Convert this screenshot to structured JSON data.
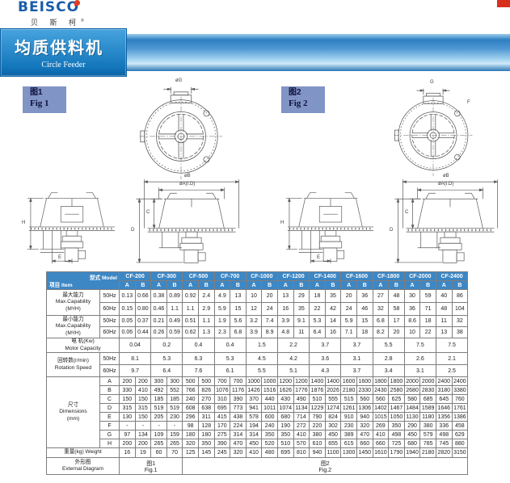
{
  "header": {
    "logo_text": "BEISCO",
    "logo_cn": "贝 斯 柯",
    "reg_mark": "®"
  },
  "banner": {
    "title_cn": "均质供料机",
    "title_en": "Circle Feeder"
  },
  "colors": {
    "table_header_blue": "#3d87c5",
    "banner_blue": "#1173b9",
    "fig_label_blue": "#8094c6",
    "logo_blue": "#1a5ca8",
    "accent_red": "#d6301d"
  },
  "figures": {
    "fig1": {
      "label_cn": "图1",
      "label_en": "Fig 1",
      "dim_top": "øG"
    },
    "fig2": {
      "label_cn": "图2",
      "label_en": "Fig 2",
      "dim_top": "G",
      "dim_side": "F"
    },
    "side_dims": {
      "h": "H",
      "e": "E",
      "b": "øB",
      "a": "øA(I.D)",
      "c": "C",
      "d": "D"
    }
  },
  "table": {
    "corner_model": "型式 Model",
    "corner_item": "项目 Item",
    "models": [
      "CF-200",
      "CF-300",
      "CF-500",
      "CF-700",
      "CF-1000",
      "CF-1200",
      "CF-1400",
      "CF-1600",
      "CF-1800",
      "CF-2000",
      "CF-2400"
    ],
    "sub_cols": [
      "A",
      "B"
    ],
    "freq_rows": [
      "50Hz",
      "60Hz"
    ],
    "sections": {
      "max_capability": {
        "label_cn": "最大能力",
        "label_en": "Max.Capability",
        "unit": "(M³/H)",
        "hz50": [
          "0.13",
          "0.66",
          "0.38",
          "0.89",
          "0.92",
          "2.4",
          "4.9",
          "13",
          "10",
          "20",
          "13",
          "29",
          "18",
          "35",
          "20",
          "36",
          "27",
          "48",
          "30",
          "59",
          "40",
          "86"
        ],
        "hz60": [
          "0.15",
          "0.80",
          "0.46",
          "1.1",
          "1.1",
          "2.9",
          "5.9",
          "15",
          "12",
          "24",
          "16",
          "35",
          "22",
          "42",
          "24",
          "46",
          "32",
          "58",
          "36",
          "71",
          "48",
          "104"
        ]
      },
      "min_capability": {
        "label_cn": "最小能力",
        "label_en": "Max.Capability",
        "unit": "(M³/H)",
        "hz50": [
          "0.05",
          "0.37",
          "0.21",
          "0.49",
          "0.51",
          "1.1",
          "1.9",
          "5.6",
          "3.2",
          "7.4",
          "3.9",
          "9.1",
          "5.3",
          "14",
          "5.9",
          "15",
          "6.8",
          "17",
          "8.6",
          "18",
          "11",
          "32"
        ],
        "hz60": [
          "0.06",
          "0.44",
          "0.26",
          "0.59",
          "0.62",
          "1.3",
          "2.3",
          "6.8",
          "3.9",
          "8.9",
          "4.8",
          "11",
          "6.4",
          "16",
          "7.1",
          "18",
          "8.2",
          "20",
          "10",
          "22",
          "13",
          "38"
        ]
      },
      "motor": {
        "label_cn": "电 机(Kw)",
        "label_en": "Motor Capacity",
        "values": [
          "0.04",
          "0.2",
          "0.4",
          "0.4",
          "1.5",
          "2.2",
          "3.7",
          "3.7",
          "5.5",
          "7.5",
          "7.5"
        ]
      },
      "rotation": {
        "label_cn": "回转数(r/min)",
        "label_en": "Rotation Speed",
        "hz50": [
          "8.1",
          "5.3",
          "6.3",
          "5.3",
          "4.5",
          "4.2",
          "3.6",
          "3.1",
          "2.8",
          "2.6",
          "2.1"
        ],
        "hz60": [
          "9.7",
          "6.4",
          "7.6",
          "6.1",
          "5.5",
          "5.1",
          "4.3",
          "3.7",
          "3.4",
          "3.1",
          "2.5"
        ]
      },
      "dimensions": {
        "label_cn": "尺寸",
        "label_en": "Dimensions",
        "unit": "(mm)",
        "rows": [
          {
            "key": "A",
            "values": [
              "200",
              "200",
              "300",
              "300",
              "500",
              "500",
              "700",
              "700",
              "1000",
              "1000",
              "1200",
              "1200",
              "1400",
              "1400",
              "1600",
              "1600",
              "1800",
              "1800",
              "2000",
              "2000",
              "2400",
              "2400"
            ]
          },
          {
            "key": "B",
            "values": [
              "330",
              "410",
              "492",
              "552",
              "766",
              "826",
              "1076",
              "1176",
              "1426",
              "1516",
              "1626",
              "1776",
              "1876",
              "2026",
              "2180",
              "2330",
              "2430",
              "2580",
              "2680",
              "2830",
              "3180",
              "3380"
            ]
          },
          {
            "key": "C",
            "values": [
              "150",
              "150",
              "185",
              "185",
              "240",
              "270",
              "310",
              "390",
              "370",
              "440",
              "430",
              "490",
              "510",
              "555",
              "515",
              "560",
              "560",
              "625",
              "580",
              "685",
              "645",
              "760"
            ]
          },
          {
            "key": "D",
            "values": [
              "315",
              "315",
              "519",
              "519",
              "608",
              "638",
              "695",
              "773",
              "941",
              "1011",
              "1074",
              "1134",
              "1229",
              "1274",
              "1261",
              "1306",
              "1402",
              "1467",
              "1484",
              "1589",
              "1646",
              "1761"
            ]
          },
          {
            "key": "E",
            "values": [
              "130",
              "150",
              "205",
              "230",
              "296",
              "311",
              "415",
              "438",
              "578",
              "600",
              "680",
              "714",
              "790",
              "824",
              "910",
              "940",
              "1015",
              "1050",
              "1130",
              "1180",
              "1356",
              "1386"
            ]
          },
          {
            "key": "F",
            "values": [
              "-",
              "-",
              "-",
              "-",
              "98",
              "128",
              "170",
              "224",
              "194",
              "240",
              "190",
              "272",
              "220",
              "302",
              "230",
              "320",
              "269",
              "350",
              "290",
              "380",
              "336",
              "458"
            ]
          },
          {
            "key": "G",
            "values": [
              "97",
              "134",
              "109",
              "159",
              "180",
              "180",
              "275",
              "314",
              "314",
              "350",
              "350",
              "410",
              "380",
              "450",
              "389",
              "470",
              "410",
              "498",
              "450",
              "579",
              "498",
              "629"
            ]
          },
          {
            "key": "H",
            "values": [
              "200",
              "200",
              "265",
              "265",
              "320",
              "350",
              "390",
              "470",
              "450",
              "520",
              "510",
              "570",
              "610",
              "655",
              "615",
              "660",
              "660",
              "725",
              "680",
              "785",
              "745",
              "880"
            ]
          }
        ]
      },
      "weight": {
        "label": "重量(kg) Weight",
        "values": [
          "16",
          "19",
          "60",
          "70",
          "125",
          "145",
          "245",
          "320",
          "410",
          "480",
          "695",
          "810",
          "940",
          "1100",
          "1300",
          "1450",
          "1610",
          "1790",
          "1940",
          "2180",
          "2820",
          "3150"
        ]
      },
      "external": {
        "label_cn": "外形图",
        "label_en": "External Diagram",
        "fig1_cn": "图1",
        "fig1_en": "Fig.1",
        "fig1_span": 4,
        "fig2_cn": "图2",
        "fig2_en": "Fig.2",
        "fig2_span": 18
      }
    }
  }
}
